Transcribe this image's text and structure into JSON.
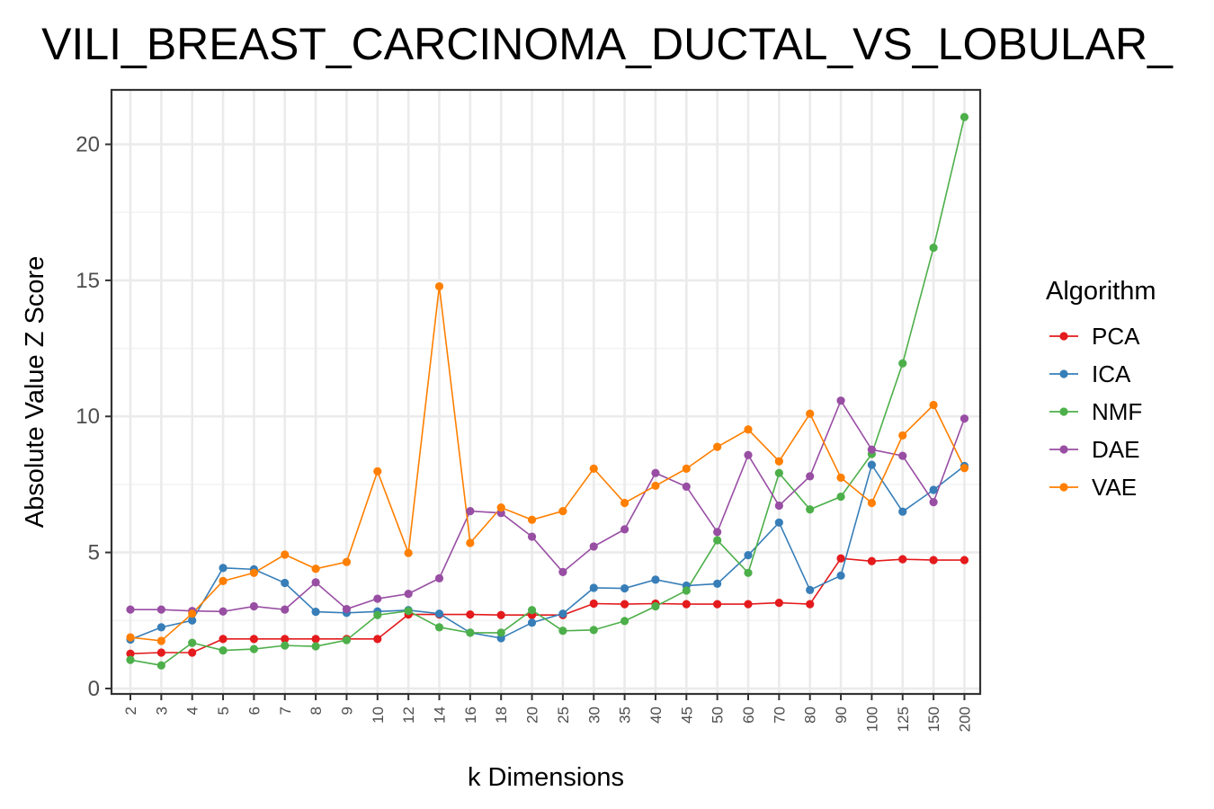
{
  "chart_data": {
    "type": "line",
    "title": "VILI_BREAST_CARCINOMA_DUCTAL_VS_LOBULAR_",
    "xlabel": "k Dimensions",
    "ylabel": "Absolute Value Z Score",
    "categories": [
      "2",
      "3",
      "4",
      "5",
      "6",
      "7",
      "8",
      "9",
      "10",
      "12",
      "14",
      "16",
      "18",
      "20",
      "25",
      "30",
      "35",
      "40",
      "45",
      "50",
      "60",
      "70",
      "80",
      "90",
      "100",
      "125",
      "150",
      "200"
    ],
    "yticks": [
      0,
      5,
      10,
      15,
      20
    ],
    "ylim": [
      -0.2,
      22
    ],
    "grid": true,
    "legend": {
      "title": "Algorithm",
      "position": "right"
    },
    "series": [
      {
        "name": "PCA",
        "color": "#e41a1c",
        "values": [
          1.28,
          1.32,
          1.32,
          1.82,
          1.82,
          1.82,
          1.82,
          1.82,
          1.82,
          2.72,
          2.72,
          2.72,
          2.7,
          2.7,
          2.7,
          3.12,
          3.1,
          3.12,
          3.1,
          3.1,
          3.1,
          3.15,
          3.1,
          4.78,
          4.68,
          4.75,
          4.72,
          4.72
        ]
      },
      {
        "name": "ICA",
        "color": "#377eb8",
        "values": [
          1.8,
          2.25,
          2.5,
          4.43,
          4.38,
          3.88,
          2.82,
          2.78,
          2.83,
          2.88,
          2.75,
          2.05,
          1.85,
          2.42,
          2.75,
          3.7,
          3.68,
          4.0,
          3.78,
          3.85,
          4.9,
          6.1,
          3.62,
          4.15,
          8.22,
          6.5,
          7.3,
          8.18
        ]
      },
      {
        "name": "NMF",
        "color": "#4daf4a",
        "values": [
          1.05,
          0.85,
          1.68,
          1.4,
          1.45,
          1.58,
          1.55,
          1.78,
          2.7,
          2.85,
          2.25,
          2.05,
          2.05,
          2.88,
          2.12,
          2.15,
          2.48,
          3.02,
          3.6,
          5.45,
          4.25,
          7.92,
          6.58,
          7.05,
          8.62,
          11.95,
          16.2,
          21.0
        ]
      },
      {
        "name": "DAE",
        "color": "#984ea3",
        "values": [
          2.9,
          2.9,
          2.85,
          2.83,
          3.02,
          2.9,
          3.9,
          2.92,
          3.3,
          3.48,
          4.05,
          6.52,
          6.45,
          5.58,
          4.28,
          5.22,
          5.85,
          7.92,
          7.42,
          5.75,
          8.58,
          6.72,
          7.8,
          10.58,
          8.78,
          8.55,
          6.85,
          9.92
        ]
      },
      {
        "name": "VAE",
        "color": "#ff7f00",
        "values": [
          1.88,
          1.75,
          2.75,
          3.95,
          4.25,
          4.92,
          4.4,
          4.65,
          7.98,
          4.98,
          14.78,
          5.35,
          6.65,
          6.2,
          6.52,
          8.08,
          6.82,
          7.45,
          8.08,
          8.88,
          9.52,
          8.35,
          10.1,
          7.75,
          6.82,
          9.3,
          10.42,
          8.1
        ]
      }
    ]
  }
}
